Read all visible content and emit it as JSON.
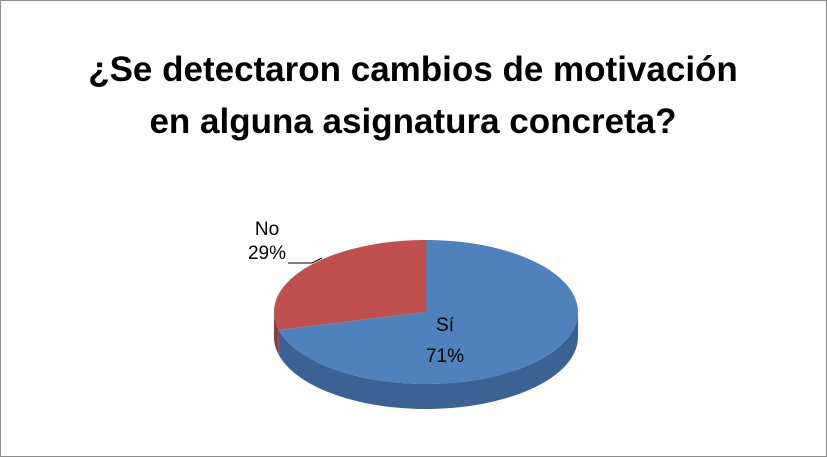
{
  "chart_data": {
    "type": "pie",
    "title": "¿Se detectaron cambios de motivación en alguna asignatura concreta?",
    "categories": [
      "Sí",
      "No"
    ],
    "values": [
      71,
      29
    ],
    "value_labels": [
      "71%",
      "29%"
    ],
    "colors": [
      "#4f81bd",
      "#c0504d"
    ],
    "side_colors": [
      "#3a6292",
      "#923b39"
    ]
  }
}
